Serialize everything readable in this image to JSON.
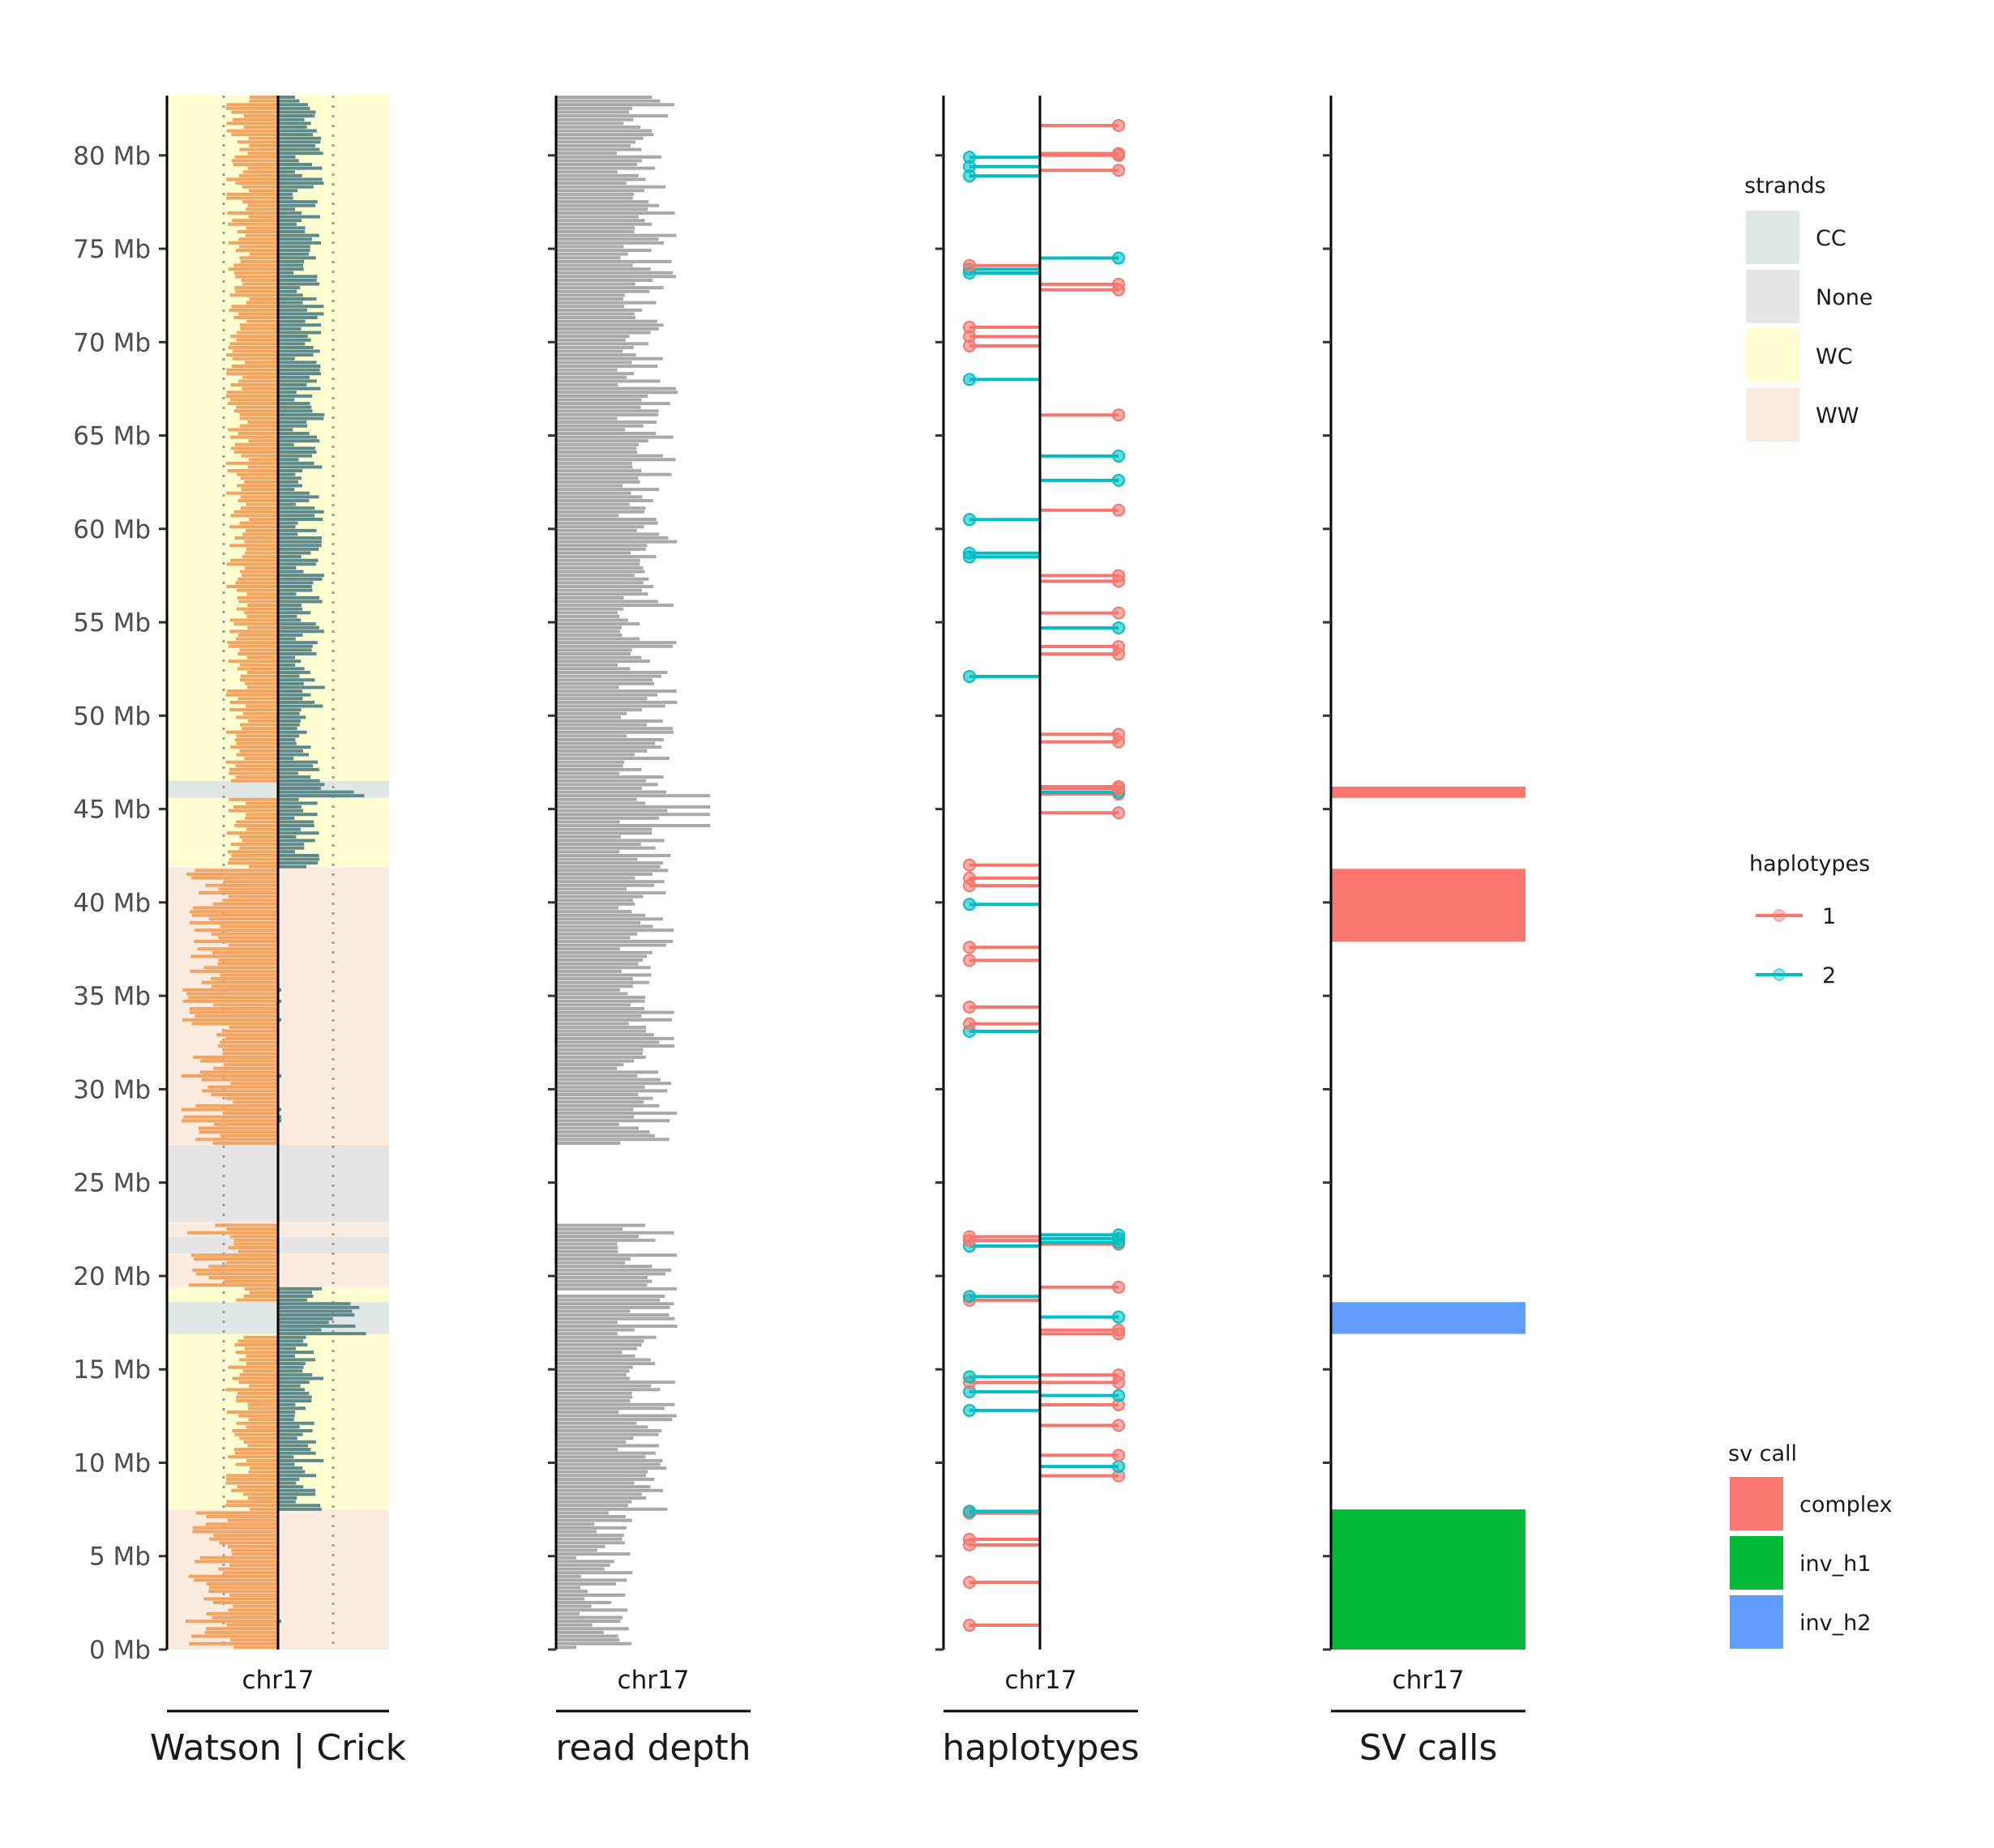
{
  "chart_data": {
    "type": "genome-track",
    "chromosome": "chr17",
    "y_unit": "Mb",
    "ylim": [
      0,
      83.2
    ],
    "y_ticks": [
      0,
      5,
      10,
      15,
      20,
      25,
      30,
      35,
      40,
      45,
      50,
      55,
      60,
      65,
      70,
      75,
      80
    ],
    "y_tick_labels": [
      "0 Mb",
      "5 Mb",
      "10 Mb",
      "15 Mb",
      "20 Mb",
      "25 Mb",
      "30 Mb",
      "35 Mb",
      "40 Mb",
      "45 Mb",
      "50 Mb",
      "55 Mb",
      "60 Mb",
      "65 Mb",
      "70 Mb",
      "75 Mb",
      "80 Mb"
    ],
    "panels": [
      {
        "id": "strand",
        "title": "Watson | Crick",
        "sublabel": "chr17"
      },
      {
        "id": "depth",
        "title": "read depth",
        "sublabel": "chr17"
      },
      {
        "id": "haplotypes",
        "title": "haplotypes",
        "sublabel": "chr17"
      },
      {
        "id": "sv",
        "title": "SV calls",
        "sublabel": "chr17"
      }
    ],
    "strand_states": [
      {
        "start": 0,
        "end": 7.5,
        "state": "WW"
      },
      {
        "start": 7.5,
        "end": 16.9,
        "state": "WC"
      },
      {
        "start": 16.9,
        "end": 18.6,
        "state": "CC"
      },
      {
        "start": 18.6,
        "end": 19.4,
        "state": "WC"
      },
      {
        "start": 19.4,
        "end": 21.2,
        "state": "WW"
      },
      {
        "start": 21.2,
        "end": 22.1,
        "state": "None"
      },
      {
        "start": 22.1,
        "end": 22.9,
        "state": "WW"
      },
      {
        "start": 22.9,
        "end": 27.0,
        "state": "None"
      },
      {
        "start": 27.0,
        "end": 41.9,
        "state": "WW"
      },
      {
        "start": 41.9,
        "end": 45.6,
        "state": "WC"
      },
      {
        "start": 45.6,
        "end": 46.5,
        "state": "CC"
      },
      {
        "start": 46.5,
        "end": 83.2,
        "state": "WC"
      }
    ],
    "sv_calls": [
      {
        "start": 0,
        "end": 7.5,
        "call": "inv_h1"
      },
      {
        "start": 16.9,
        "end": 18.6,
        "call": "inv_h2"
      },
      {
        "start": 37.9,
        "end": 41.8,
        "call": "complex"
      },
      {
        "start": 45.6,
        "end": 46.2,
        "call": "complex"
      }
    ],
    "haplotype_snvs": [
      {
        "pos": 1.3,
        "hap": 1,
        "strand": "W"
      },
      {
        "pos": 3.6,
        "hap": 1,
        "strand": "W"
      },
      {
        "pos": 5.6,
        "hap": 1,
        "strand": "W"
      },
      {
        "pos": 5.9,
        "hap": 1,
        "strand": "W"
      },
      {
        "pos": 7.3,
        "hap": 1,
        "strand": "W"
      },
      {
        "pos": 7.4,
        "hap": 2,
        "strand": "W"
      },
      {
        "pos": 9.3,
        "hap": 1,
        "strand": "C"
      },
      {
        "pos": 9.8,
        "hap": 2,
        "strand": "C"
      },
      {
        "pos": 10.4,
        "hap": 1,
        "strand": "C"
      },
      {
        "pos": 12.0,
        "hap": 1,
        "strand": "C"
      },
      {
        "pos": 12.8,
        "hap": 2,
        "strand": "W"
      },
      {
        "pos": 13.1,
        "hap": 1,
        "strand": "C"
      },
      {
        "pos": 13.6,
        "hap": 2,
        "strand": "C"
      },
      {
        "pos": 13.8,
        "hap": 2,
        "strand": "W"
      },
      {
        "pos": 14.3,
        "hap": 1,
        "strand": "W"
      },
      {
        "pos": 14.3,
        "hap": 1,
        "strand": "C"
      },
      {
        "pos": 14.6,
        "hap": 2,
        "strand": "W"
      },
      {
        "pos": 14.7,
        "hap": 1,
        "strand": "C"
      },
      {
        "pos": 16.9,
        "hap": 1,
        "strand": "C"
      },
      {
        "pos": 17.1,
        "hap": 1,
        "strand": "C"
      },
      {
        "pos": 17.8,
        "hap": 2,
        "strand": "C"
      },
      {
        "pos": 18.7,
        "hap": 1,
        "strand": "W"
      },
      {
        "pos": 18.9,
        "hap": 2,
        "strand": "W"
      },
      {
        "pos": 19.4,
        "hap": 1,
        "strand": "C"
      },
      {
        "pos": 21.6,
        "hap": 2,
        "strand": "W"
      },
      {
        "pos": 21.7,
        "hap": 1,
        "strand": "C"
      },
      {
        "pos": 21.8,
        "hap": 2,
        "strand": "C"
      },
      {
        "pos": 21.9,
        "hap": 1,
        "strand": "W"
      },
      {
        "pos": 22.0,
        "hap": 2,
        "strand": "C"
      },
      {
        "pos": 22.1,
        "hap": 1,
        "strand": "W"
      },
      {
        "pos": 22.2,
        "hap": 2,
        "strand": "C"
      },
      {
        "pos": 33.1,
        "hap": 2,
        "strand": "W"
      },
      {
        "pos": 33.5,
        "hap": 1,
        "strand": "W"
      },
      {
        "pos": 34.4,
        "hap": 1,
        "strand": "W"
      },
      {
        "pos": 36.9,
        "hap": 1,
        "strand": "W"
      },
      {
        "pos": 37.6,
        "hap": 1,
        "strand": "W"
      },
      {
        "pos": 39.9,
        "hap": 2,
        "strand": "W"
      },
      {
        "pos": 40.9,
        "hap": 1,
        "strand": "W"
      },
      {
        "pos": 41.3,
        "hap": 1,
        "strand": "W"
      },
      {
        "pos": 42.0,
        "hap": 1,
        "strand": "W"
      },
      {
        "pos": 44.8,
        "hap": 1,
        "strand": "C"
      },
      {
        "pos": 45.8,
        "hap": 1,
        "strand": "C"
      },
      {
        "pos": 45.9,
        "hap": 2,
        "strand": "C"
      },
      {
        "pos": 46.1,
        "hap": 1,
        "strand": "C"
      },
      {
        "pos": 46.2,
        "hap": 1,
        "strand": "C"
      },
      {
        "pos": 48.6,
        "hap": 1,
        "strand": "C"
      },
      {
        "pos": 49.0,
        "hap": 1,
        "strand": "C"
      },
      {
        "pos": 52.1,
        "hap": 2,
        "strand": "W"
      },
      {
        "pos": 53.3,
        "hap": 1,
        "strand": "C"
      },
      {
        "pos": 53.7,
        "hap": 1,
        "strand": "C"
      },
      {
        "pos": 54.7,
        "hap": 2,
        "strand": "C"
      },
      {
        "pos": 55.5,
        "hap": 1,
        "strand": "C"
      },
      {
        "pos": 57.2,
        "hap": 1,
        "strand": "C"
      },
      {
        "pos": 57.5,
        "hap": 1,
        "strand": "C"
      },
      {
        "pos": 58.5,
        "hap": 2,
        "strand": "W"
      },
      {
        "pos": 58.7,
        "hap": 2,
        "strand": "W"
      },
      {
        "pos": 60.5,
        "hap": 2,
        "strand": "W"
      },
      {
        "pos": 61.0,
        "hap": 1,
        "strand": "C"
      },
      {
        "pos": 62.6,
        "hap": 2,
        "strand": "C"
      },
      {
        "pos": 63.9,
        "hap": 2,
        "strand": "C"
      },
      {
        "pos": 66.1,
        "hap": 1,
        "strand": "C"
      },
      {
        "pos": 68.0,
        "hap": 2,
        "strand": "W"
      },
      {
        "pos": 69.8,
        "hap": 1,
        "strand": "W"
      },
      {
        "pos": 70.3,
        "hap": 1,
        "strand": "W"
      },
      {
        "pos": 70.8,
        "hap": 1,
        "strand": "W"
      },
      {
        "pos": 72.8,
        "hap": 1,
        "strand": "C"
      },
      {
        "pos": 73.1,
        "hap": 1,
        "strand": "C"
      },
      {
        "pos": 73.7,
        "hap": 2,
        "strand": "W"
      },
      {
        "pos": 73.9,
        "hap": 2,
        "strand": "W"
      },
      {
        "pos": 74.1,
        "hap": 1,
        "strand": "W"
      },
      {
        "pos": 74.5,
        "hap": 2,
        "strand": "C"
      },
      {
        "pos": 78.9,
        "hap": 2,
        "strand": "W"
      },
      {
        "pos": 79.2,
        "hap": 1,
        "strand": "C"
      },
      {
        "pos": 79.4,
        "hap": 2,
        "strand": "W"
      },
      {
        "pos": 79.9,
        "hap": 2,
        "strand": "W"
      },
      {
        "pos": 80.0,
        "hap": 1,
        "strand": "C"
      },
      {
        "pos": 80.1,
        "hap": 1,
        "strand": "C"
      },
      {
        "pos": 81.6,
        "hap": 1,
        "strand": "C"
      }
    ],
    "read_depth_gaps": [
      [
        22.9,
        27.0
      ],
      [
        19.0,
        19.3
      ]
    ],
    "legends": [
      {
        "title": "strands",
        "items": [
          {
            "label": "CC",
            "color": "#e0e8e5"
          },
          {
            "label": "None",
            "color": "#e5e5e5"
          },
          {
            "label": "WC",
            "color": "#fefed0"
          },
          {
            "label": "WW",
            "color": "#fcebdf"
          }
        ]
      },
      {
        "title": "haplotypes",
        "items": [
          {
            "label": "1",
            "color": "#f8766d"
          },
          {
            "label": "2",
            "color": "#00bfc4"
          }
        ]
      },
      {
        "title": "sv call",
        "items": [
          {
            "label": "complex",
            "color": "#f8766d"
          },
          {
            "label": "inv_h1",
            "color": "#00ba38"
          },
          {
            "label": "inv_h2",
            "color": "#619cff"
          }
        ]
      }
    ],
    "colors": {
      "watson": "#f4a460",
      "crick": "#5f8a8b",
      "depth": "#a9a9a9"
    }
  }
}
